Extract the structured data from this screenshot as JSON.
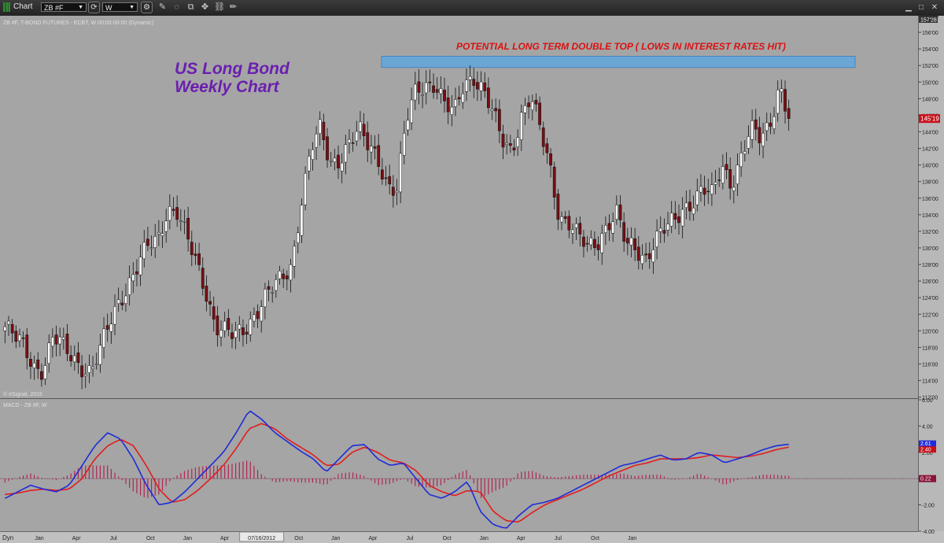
{
  "toolbar": {
    "app_label": "Chart",
    "symbol_value": "ZB #F",
    "interval_value": "W"
  },
  "header": {
    "symbol_info": "ZB #F, T-BOND FUTURES - ECBT, W 00:00-00:00 (Dynamic)",
    "copyright": "© eSignal, 2015",
    "macd_title": "MACD - ZB #F, W",
    "dyn_label": "Dyn"
  },
  "annotations": {
    "title_line1": "US Long Bond",
    "title_line2": "Weekly Chart",
    "resistance_label": "POTENTIAL LONG TERM DOUBLE TOP ( LOWS IN INTEREST RATES HIT)"
  },
  "colors": {
    "plot_bg": "#a5a5a5",
    "up_candle": "#ffffff",
    "down_candle": "#7a0d12",
    "title_text": "#6a1fb0",
    "resistance_text": "#dd1111",
    "resistance_zone": "#5aa7e6",
    "macd_line": "#1f2bd8",
    "signal_line": "#e21d1d",
    "histogram": "#b02650"
  },
  "price_axis": {
    "ticks": [
      "158'00",
      "156'00",
      "154'00",
      "152'00",
      "150'00",
      "148'00",
      "146'00",
      "144'00",
      "142'00",
      "140'00",
      "138'00",
      "136'00",
      "134'00",
      "132'00",
      "130'00",
      "128'00",
      "126'00",
      "124'00",
      "122'00",
      "120'00",
      "118'00",
      "116'00",
      "114'00",
      "112'00"
    ],
    "top_badge": "157'28",
    "last_price": "145'19"
  },
  "macd_axis": {
    "ticks": [
      "6.00",
      "4.00",
      "2.00",
      "0.00",
      "-2.00",
      "-4.00"
    ],
    "macd_value": "2.61",
    "signal_value": "2.40",
    "hist_value": "0.22"
  },
  "time_axis": {
    "labels": [
      "Jan",
      "Apr",
      "Jul",
      "Oct",
      "Jan",
      "Apr",
      "07/16/2012",
      "Oct",
      "Jan",
      "Apr",
      "Jul",
      "Oct",
      "Jan",
      "Apr",
      "Jul",
      "Oct",
      "Jan"
    ]
  },
  "chart_data": [
    {
      "type": "candlestick",
      "title": "US Long Bond Weekly Chart",
      "ylim": [
        111.875,
        158
      ],
      "x_categories": [
        "Jan",
        "Apr",
        "Jul",
        "Oct",
        "Jan",
        "Apr",
        "07/16/2012",
        "Oct",
        "Jan",
        "Apr",
        "Jul",
        "Oct",
        "Jan",
        "Apr",
        "Jul",
        "Oct",
        "Jan"
      ],
      "closes": [
        120.5,
        119,
        118,
        116,
        115.5,
        119,
        118,
        117,
        116,
        115,
        117.5,
        121,
        124,
        126,
        128,
        130,
        131,
        135,
        134.5,
        131,
        128,
        125,
        121,
        120,
        119,
        120,
        122,
        124,
        125,
        126,
        128,
        136,
        142,
        144,
        140,
        141,
        143,
        144,
        142,
        141,
        138,
        137,
        145,
        149,
        150,
        150,
        147,
        146,
        150,
        151,
        149,
        146,
        143,
        142,
        146,
        148,
        144,
        140,
        134,
        133,
        131,
        130,
        131,
        133,
        134,
        130,
        130,
        129,
        131,
        132,
        133,
        135,
        136,
        137,
        136,
        140,
        138,
        141,
        144,
        143,
        145,
        150,
        145.6
      ],
      "resistance_zone": [
        151.75,
        153.125
      ],
      "last_price": "145'19"
    },
    {
      "type": "line",
      "title": "MACD - ZB #F, W",
      "ylim": [
        -4,
        6
      ],
      "series": [
        {
          "name": "MACD",
          "values": [
            -1.5,
            -1,
            -0.5,
            -0.8,
            -1,
            -0.5,
            1,
            2.5,
            3.5,
            3,
            1.5,
            -0.5,
            -2,
            -1.8,
            -1,
            0,
            1,
            2,
            3.5,
            5.2,
            4.5,
            3.5,
            2.8,
            2.1,
            1.5,
            0.5,
            1.5,
            2.5,
            2.6,
            1.5,
            1,
            1.2,
            0,
            -1.2,
            -1.5,
            -1,
            -0.2,
            -2.5,
            -3.5,
            -3.8,
            -2.8,
            -2,
            -1.8,
            -1.5,
            -1,
            -0.5,
            0,
            0.5,
            1,
            1.2,
            1.5,
            1.8,
            1.4,
            1.5,
            2,
            1.8,
            1.2,
            1.5,
            1.8,
            2.2,
            2.5,
            2.61
          ]
        },
        {
          "name": "Signal",
          "values": [
            -1.2,
            -1.1,
            -0.9,
            -0.8,
            -0.9,
            -0.8,
            0,
            1.5,
            2.5,
            3,
            2.5,
            1,
            -0.8,
            -1.8,
            -1.6,
            -0.9,
            0,
            1,
            2.3,
            3.8,
            4.2,
            3.8,
            3,
            2.4,
            1.8,
            1,
            1.1,
            2,
            2.4,
            2,
            1.4,
            1.2,
            0.6,
            -0.5,
            -1,
            -1.3,
            -0.9,
            -1,
            -2.5,
            -3.2,
            -3.3,
            -2.6,
            -2,
            -1.6,
            -1.2,
            -0.8,
            -0.3,
            0.2,
            0.6,
            1,
            1.2,
            1.5,
            1.5,
            1.5,
            1.6,
            1.8,
            1.7,
            1.6,
            1.7,
            1.9,
            2.2,
            2.4
          ]
        },
        {
          "name": "Histogram",
          "values": []
        }
      ],
      "values_shown": {
        "MACD": 2.61,
        "Signal": 2.4,
        "Histogram": 0.22
      }
    }
  ]
}
